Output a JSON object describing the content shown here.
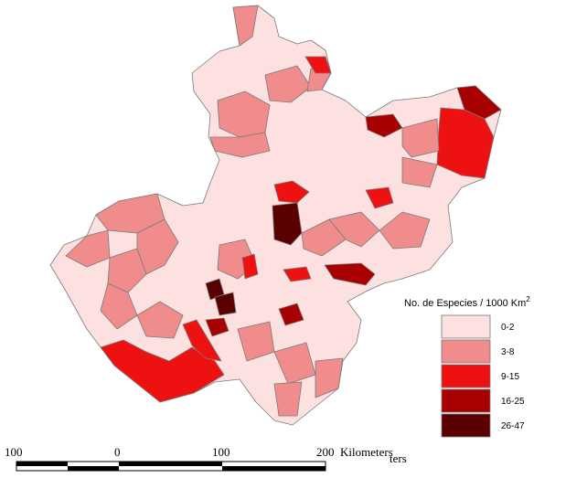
{
  "legend": {
    "title_prefix": "No. de Especies / 1000 Km",
    "title_superscript": "2",
    "classes": [
      {
        "label": "0-2",
        "color": "#fde0e0"
      },
      {
        "label": "3-8",
        "color": "#f08c8c"
      },
      {
        "label": "9-15",
        "color": "#ee1111"
      },
      {
        "label": "16-25",
        "color": "#a80000"
      },
      {
        "label": "26-47",
        "color": "#5a0000"
      }
    ]
  },
  "scale_bar": {
    "ticks": [
      "100",
      "0",
      "100",
      "200"
    ],
    "unit_text": "Kilometers",
    "unit_overlap": "ters"
  }
}
